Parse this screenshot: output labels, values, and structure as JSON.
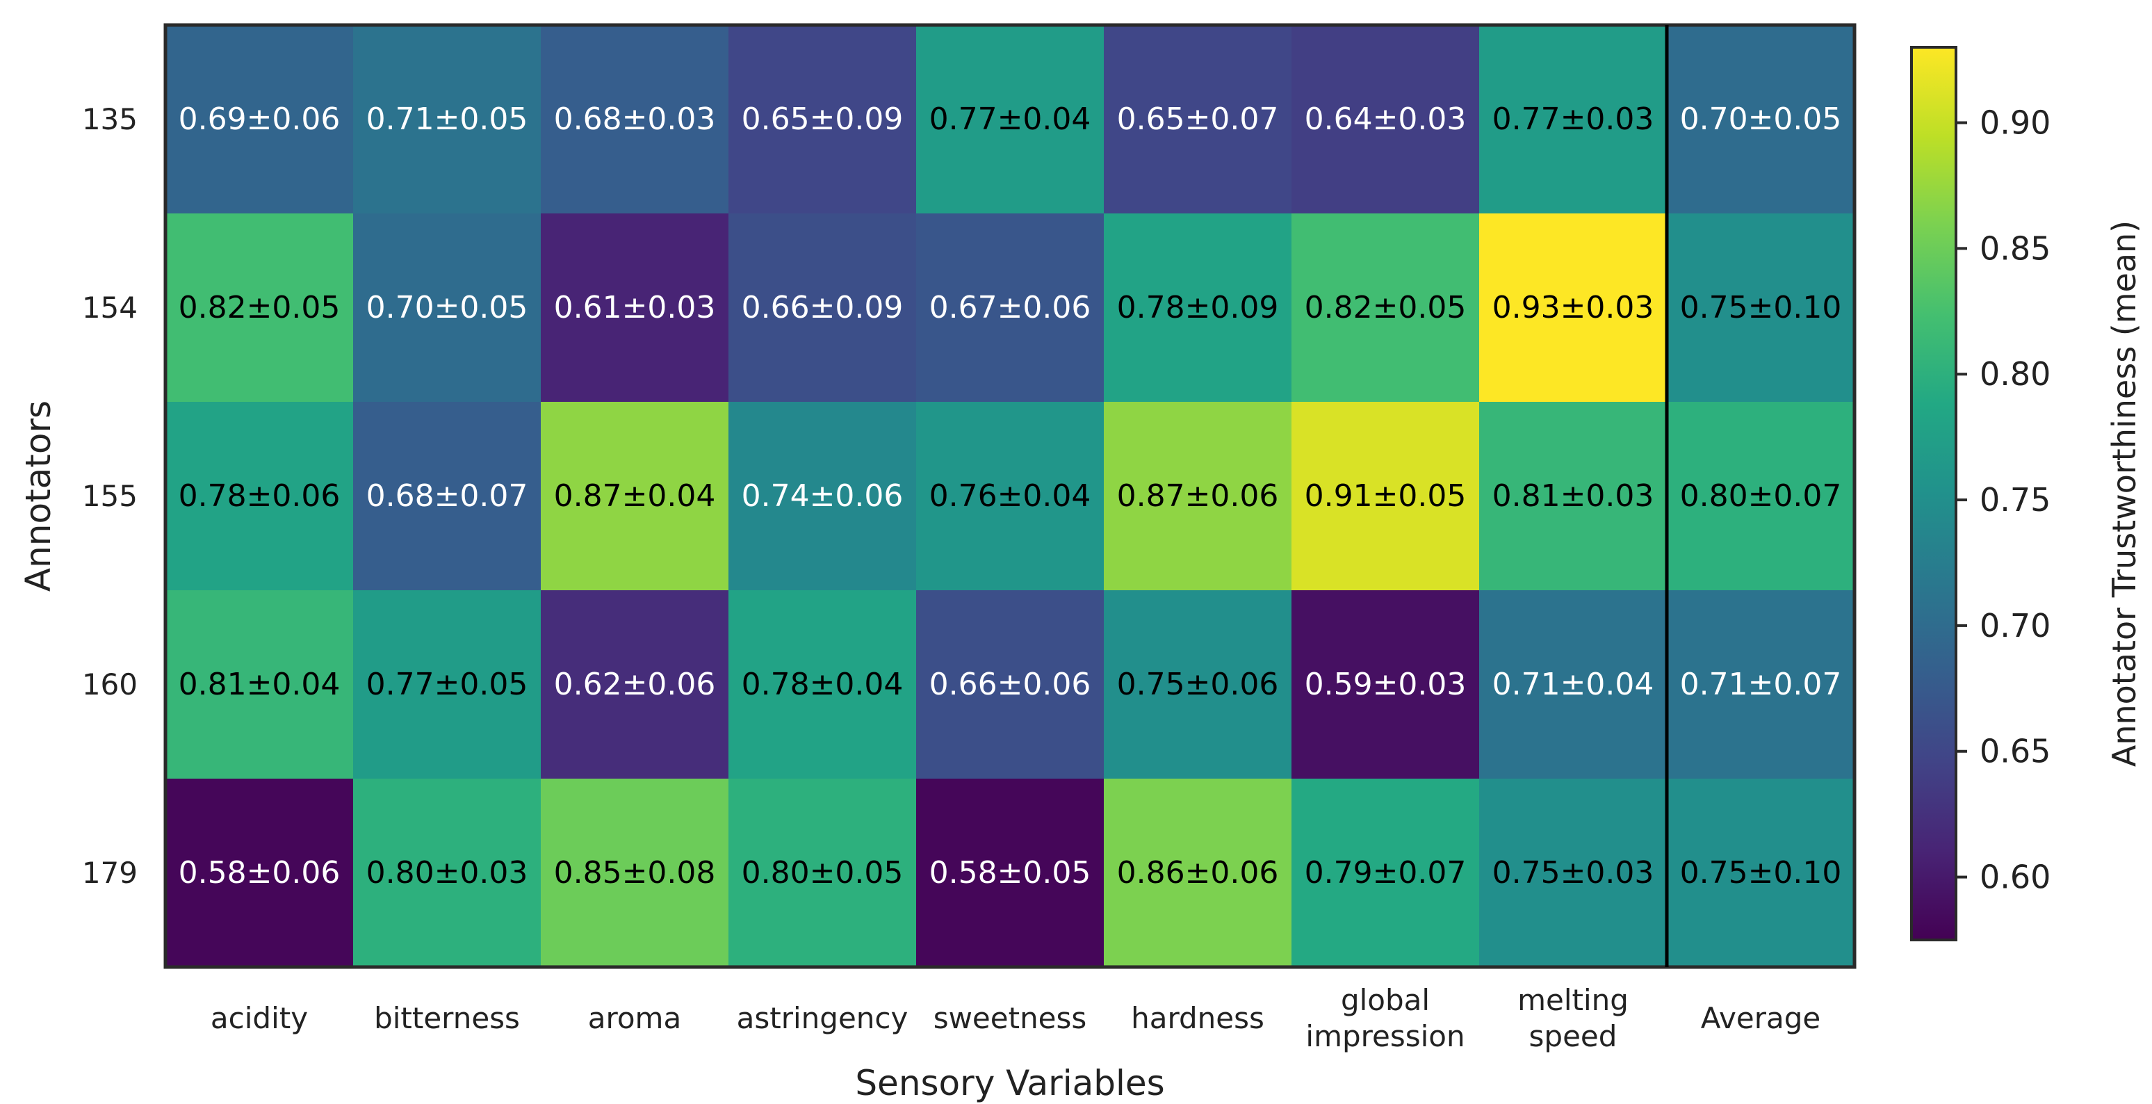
{
  "chart_data": {
    "type": "heatmap",
    "title": "",
    "xlabel": "Sensory Variables",
    "ylabel": "Annotators",
    "x_labels": [
      [
        "acidity"
      ],
      [
        "bitterness"
      ],
      [
        "aroma"
      ],
      [
        "astringency"
      ],
      [
        "sweetness"
      ],
      [
        "hardness"
      ],
      [
        "global",
        "impression"
      ],
      [
        "melting",
        "speed"
      ],
      [
        "Average"
      ]
    ],
    "y_labels": [
      "135",
      "154",
      "155",
      "160",
      "179"
    ],
    "means": [
      [
        0.69,
        0.71,
        0.68,
        0.65,
        0.77,
        0.65,
        0.64,
        0.77,
        0.7
      ],
      [
        0.82,
        0.7,
        0.61,
        0.66,
        0.67,
        0.78,
        0.82,
        0.93,
        0.75
      ],
      [
        0.78,
        0.68,
        0.87,
        0.74,
        0.76,
        0.87,
        0.91,
        0.81,
        0.8
      ],
      [
        0.81,
        0.77,
        0.62,
        0.78,
        0.66,
        0.75,
        0.59,
        0.71,
        0.71
      ],
      [
        0.58,
        0.8,
        0.85,
        0.8,
        0.58,
        0.86,
        0.79,
        0.75,
        0.75
      ]
    ],
    "annotations": [
      [
        "0.69±0.06",
        "0.71±0.05",
        "0.68±0.03",
        "0.65±0.09",
        "0.77±0.04",
        "0.65±0.07",
        "0.64±0.03",
        "0.77±0.03",
        "0.70±0.05"
      ],
      [
        "0.82±0.05",
        "0.70±0.05",
        "0.61±0.03",
        "0.66±0.09",
        "0.67±0.06",
        "0.78±0.09",
        "0.82±0.05",
        "0.93±0.03",
        "0.75±0.10"
      ],
      [
        "0.78±0.06",
        "0.68±0.07",
        "0.87±0.04",
        "0.74±0.06",
        "0.76±0.04",
        "0.87±0.06",
        "0.91±0.05",
        "0.81±0.03",
        "0.80±0.07"
      ],
      [
        "0.81±0.04",
        "0.77±0.05",
        "0.62±0.06",
        "0.78±0.04",
        "0.66±0.06",
        "0.75±0.06",
        "0.59±0.03",
        "0.71±0.04",
        "0.71±0.07"
      ],
      [
        "0.58±0.06",
        "0.80±0.03",
        "0.85±0.08",
        "0.80±0.05",
        "0.58±0.05",
        "0.86±0.06",
        "0.79±0.07",
        "0.75±0.03",
        "0.75±0.10"
      ]
    ],
    "text_color_threshold": 0.75,
    "separator_after_column": 8,
    "colormap": "viridis",
    "colorbar": {
      "label": "Annotator Trustworthiness (mean)",
      "vmin": 0.575,
      "vmax": 0.93,
      "ticks": [
        0.6,
        0.65,
        0.7,
        0.75,
        0.8,
        0.85,
        0.9
      ],
      "tick_labels": [
        "0.60",
        "0.65",
        "0.70",
        "0.75",
        "0.80",
        "0.85",
        "0.90"
      ]
    }
  }
}
